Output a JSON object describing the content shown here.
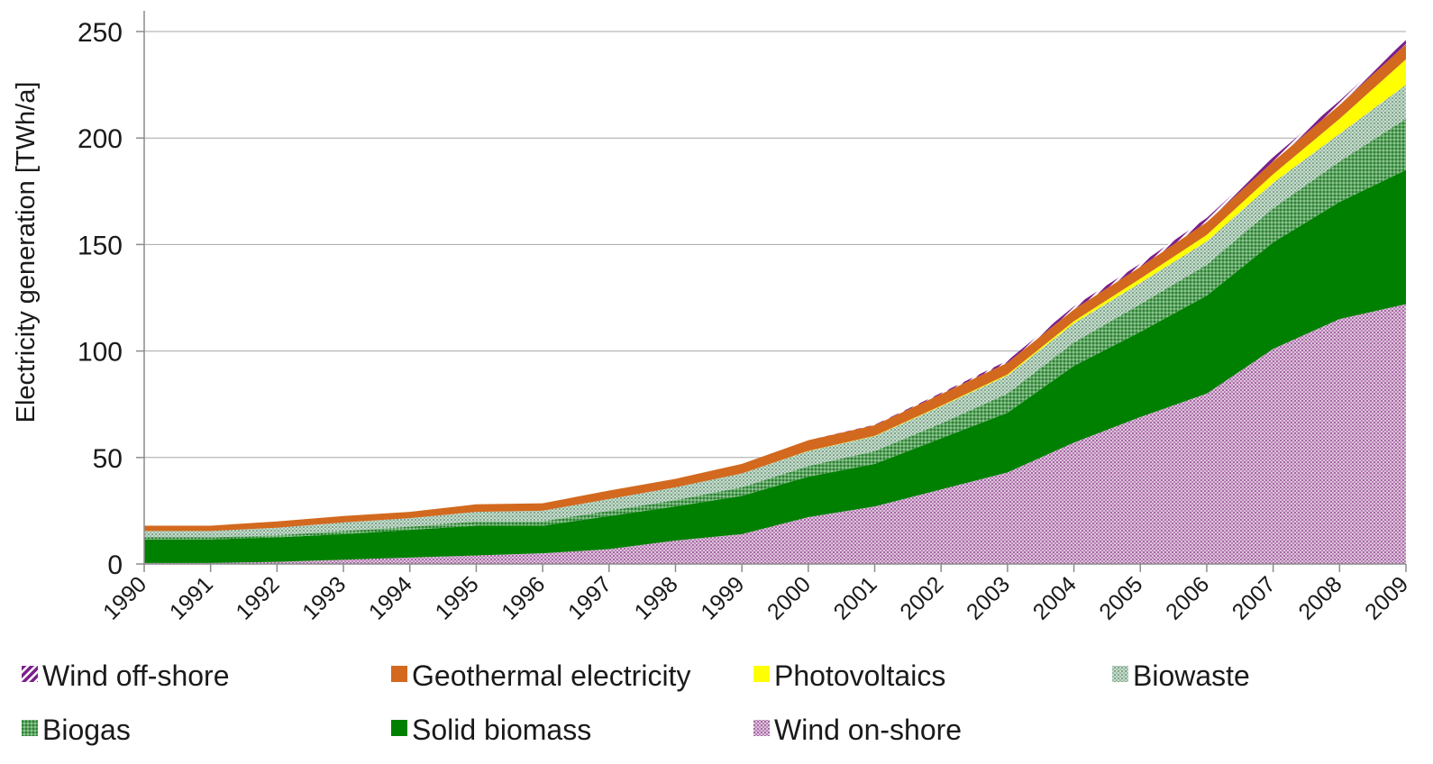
{
  "chart_data": {
    "type": "area",
    "stacked": true,
    "title": "",
    "xlabel": "",
    "ylabel": "Electricity generation [TWh/a]",
    "ylim": [
      0,
      250
    ],
    "yticks": [
      0,
      50,
      100,
      150,
      200,
      250
    ],
    "grid": true,
    "legend_position": "bottom",
    "categories": [
      "1990",
      "1991",
      "1992",
      "1993",
      "1994",
      "1995",
      "1996",
      "1997",
      "1998",
      "1999",
      "2000",
      "2001",
      "2002",
      "2003",
      "2004",
      "2005",
      "2006",
      "2007",
      "2008",
      "2009"
    ],
    "series": [
      {
        "name": "Wind on-shore",
        "color": "#c9a0c8",
        "pattern": "dots",
        "values": [
          0.5,
          0.5,
          1,
          2,
          3,
          4,
          5,
          7,
          11,
          14,
          22,
          27,
          35,
          43,
          57,
          69,
          80,
          101,
          115,
          122
        ]
      },
      {
        "name": "Solid biomass",
        "color": "#008000",
        "pattern": "solid",
        "values": [
          11,
          11,
          11.5,
          12,
          13,
          14,
          13,
          15.5,
          16,
          18,
          19,
          20,
          24,
          28,
          36,
          40,
          46,
          50,
          55,
          63
        ]
      },
      {
        "name": "Biogas",
        "color": "#4e9e57",
        "pattern": "dots",
        "values": [
          1,
          1,
          1,
          1.5,
          1.5,
          2,
          2,
          2.5,
          3,
          4,
          5,
          6,
          7,
          9,
          11,
          13,
          14.5,
          16,
          19,
          24
        ]
      },
      {
        "name": "Biowaste",
        "color": "#9fbfa8",
        "pattern": "dots",
        "values": [
          3,
          3,
          3.5,
          4,
          4,
          4.5,
          5,
          5.5,
          6,
          6.5,
          7,
          7,
          8,
          8.5,
          9,
          10,
          11,
          12,
          13,
          16
        ]
      },
      {
        "name": "Photovoltaics",
        "color": "#ffff00",
        "pattern": "solid",
        "values": [
          0,
          0,
          0,
          0,
          0,
          0,
          0,
          0,
          0,
          0,
          0.1,
          0.2,
          0.3,
          0.5,
          1,
          2,
          3,
          4,
          7,
          12
        ]
      },
      {
        "name": "Geothermal electricity",
        "color": "#d2691e",
        "pattern": "solid",
        "values": [
          2.5,
          2.5,
          3,
          3,
          3,
          3.5,
          3.5,
          4,
          4,
          4.5,
          5,
          5,
          5.5,
          5.5,
          5.5,
          5.5,
          6,
          6,
          6.5,
          7
        ]
      },
      {
        "name": "Wind off-shore",
        "color": "#7b1f8a",
        "pattern": "stripes",
        "values": [
          0,
          0,
          0,
          0,
          0,
          0,
          0,
          0,
          0,
          0,
          0,
          0.2,
          0.5,
          1,
          1.5,
          1.5,
          2,
          2,
          2,
          2
        ]
      }
    ],
    "legend_order": [
      "Wind off-shore",
      "Geothermal electricity",
      "Photovoltaics",
      "Biowaste",
      "Biogas",
      "Solid biomass",
      "Wind on-shore"
    ]
  }
}
